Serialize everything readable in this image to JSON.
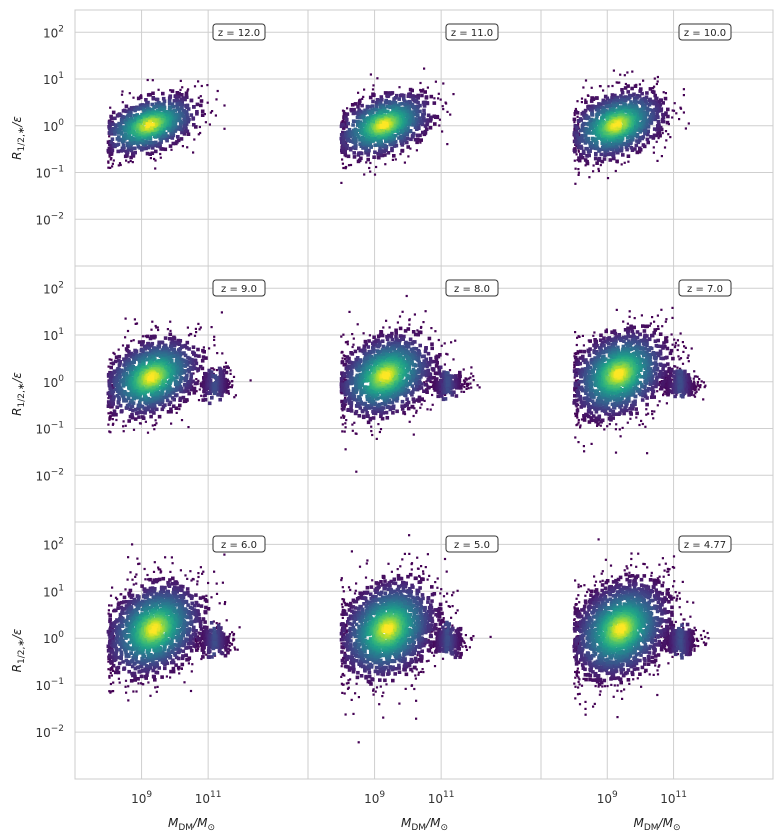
{
  "chart_data": {
    "type": "hexbin-density-grid",
    "rows": 3,
    "cols": 3,
    "xscale": "log",
    "yscale": "log",
    "xlim": [
      10000000,
      100000000000000
    ],
    "ylim": [
      0.001,
      300
    ],
    "x_ticks": [
      {
        "value": 1000000000,
        "base": "10",
        "exp": "9"
      },
      {
        "value": 100000000000,
        "base": "10",
        "exp": "11"
      }
    ],
    "y_ticks": [
      {
        "value": 100,
        "base": "10",
        "exp": "2"
      },
      {
        "value": 10,
        "base": "10",
        "exp": "1"
      },
      {
        "value": 1,
        "base": "10",
        "exp": "0"
      },
      {
        "value": 0.1,
        "base": "10",
        "exp": "−1"
      },
      {
        "value": 0.01,
        "base": "10",
        "exp": "−2"
      }
    ],
    "xlabel": {
      "main": "M",
      "sub1": "DM",
      "slash": "/M",
      "sub2": "⊙"
    },
    "ylabel": {
      "main": "R",
      "sub": "1/2,∗",
      "tail": "/ε"
    },
    "grid": true,
    "colormap": "viridis",
    "panels": [
      {
        "label": "z = 12.0",
        "core_mass": 1400000000,
        "core_r": 1.0,
        "spread": 0.55,
        "second_clump": false
      },
      {
        "label": "z = 11.0",
        "core_mass": 1500000000,
        "core_r": 1.0,
        "spread": 0.6,
        "second_clump": false
      },
      {
        "label": "z = 10.0",
        "core_mass": 1500000000,
        "core_r": 1.0,
        "spread": 0.65,
        "second_clump": false
      },
      {
        "label": "z = 9.0",
        "core_mass": 1600000000,
        "core_r": 1.2,
        "spread": 0.75,
        "second_clump": true
      },
      {
        "label": "z = 8.0",
        "core_mass": 1700000000,
        "core_r": 1.3,
        "spread": 0.8,
        "second_clump": true
      },
      {
        "label": "z = 7.0",
        "core_mass": 1800000000,
        "core_r": 1.4,
        "spread": 0.85,
        "second_clump": true
      },
      {
        "label": "z = 6.0",
        "core_mass": 1900000000,
        "core_r": 1.5,
        "spread": 0.9,
        "second_clump": true
      },
      {
        "label": "z = 5.0",
        "core_mass": 2000000000,
        "core_r": 1.5,
        "spread": 0.95,
        "second_clump": true
      },
      {
        "label": "z = 4.77",
        "core_mass": 2000000000,
        "core_r": 1.5,
        "spread": 0.95,
        "second_clump": true
      }
    ]
  }
}
